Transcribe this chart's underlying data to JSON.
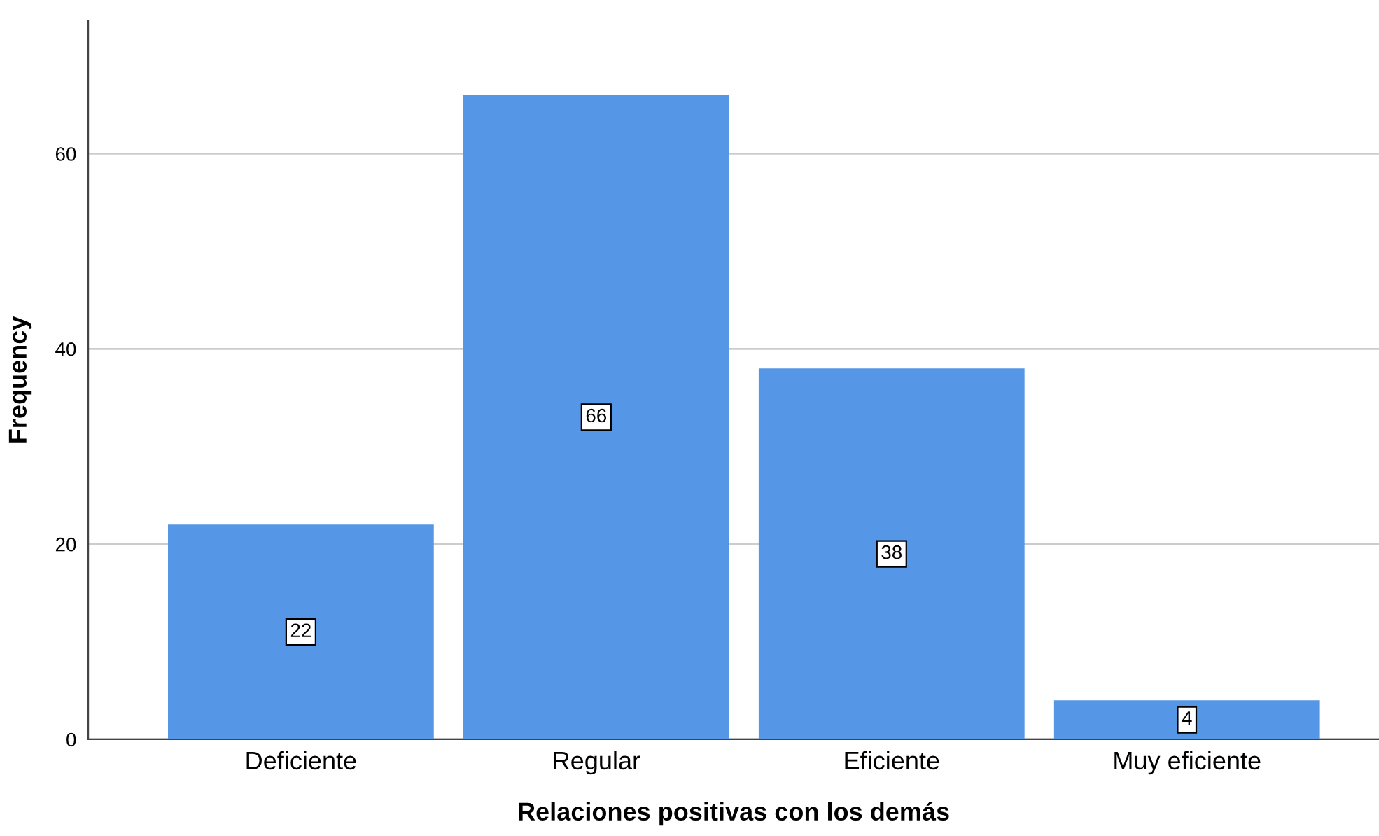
{
  "chart_data": {
    "type": "bar",
    "xlabel": "Relaciones positivas con los demás",
    "ylabel": "Frequency",
    "categories": [
      "Deficiente",
      "Regular",
      "Eficiente",
      "Muy eficiente"
    ],
    "values": [
      22,
      66,
      38,
      4
    ],
    "color": "#5596e6",
    "ylim": [
      0,
      73.6
    ],
    "yticks": [
      0,
      20,
      40,
      60
    ],
    "grid": "y",
    "data_labels": true
  }
}
